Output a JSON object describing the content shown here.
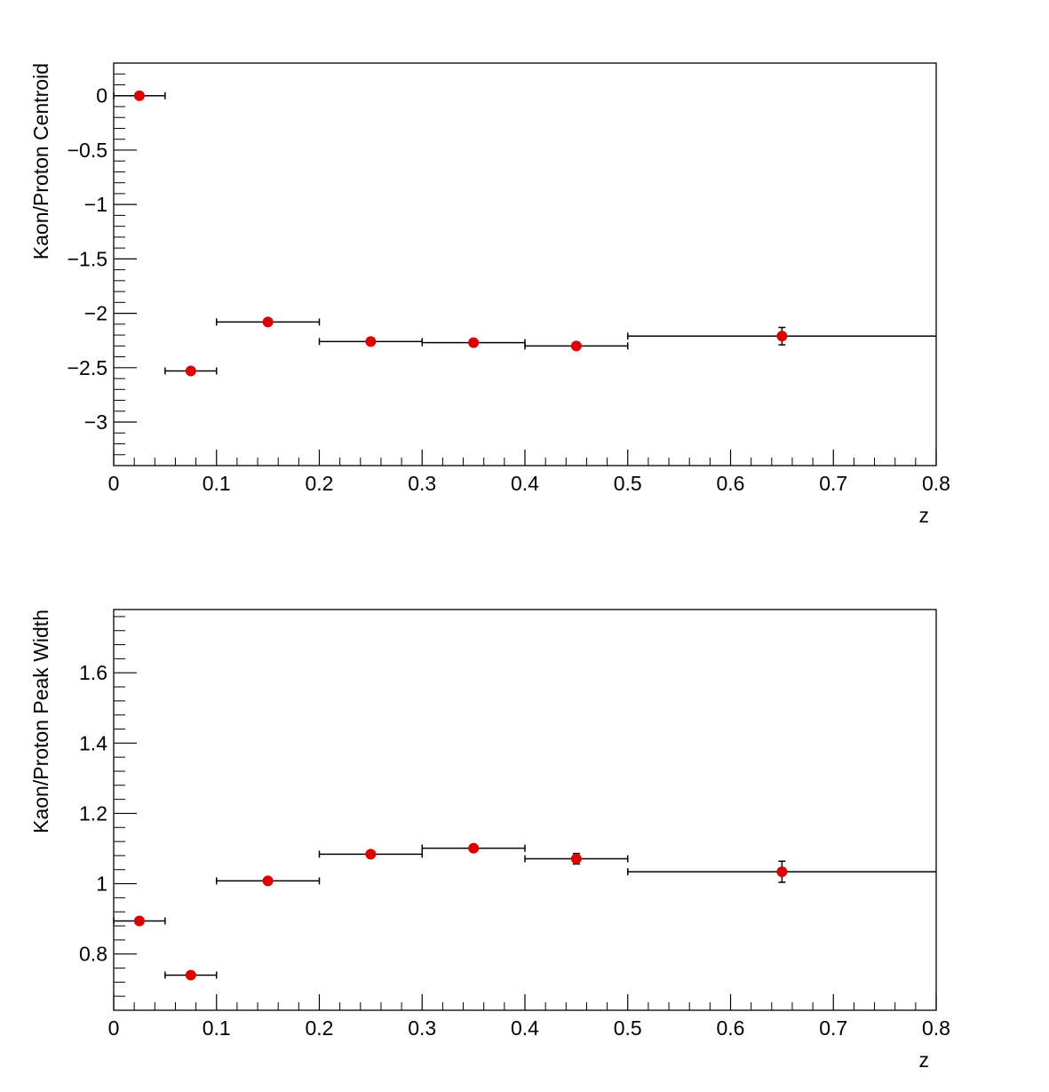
{
  "chart_data": [
    {
      "type": "scatter",
      "xlabel": "z",
      "ylabel": "Kaon/Proton Centroid",
      "xlim": [
        0,
        0.8
      ],
      "ylim": [
        -3.4,
        0.3
      ],
      "grid": false,
      "marker_color": "#dd0000",
      "x_ticks": [
        "0",
        "0.1",
        "0.2",
        "0.3",
        "0.4",
        "0.5",
        "0.6",
        "0.7",
        "0.8"
      ],
      "y_ticks": [
        "0",
        "−0.5",
        "−1",
        "−1.5",
        "−2",
        "−2.5",
        "−3"
      ],
      "points": [
        {
          "x": 0.025,
          "y": 0.0,
          "xerr": 0.025,
          "yerr": 0.0
        },
        {
          "x": 0.075,
          "y": -2.53,
          "xerr": 0.025,
          "yerr": 0.0
        },
        {
          "x": 0.15,
          "y": -2.08,
          "xerr": 0.05,
          "yerr": 0.0
        },
        {
          "x": 0.25,
          "y": -2.26,
          "xerr": 0.05,
          "yerr": 0.0
        },
        {
          "x": 0.35,
          "y": -2.27,
          "xerr": 0.05,
          "yerr": 0.0
        },
        {
          "x": 0.45,
          "y": -2.3,
          "xerr": 0.05,
          "yerr": 0.0
        },
        {
          "x": 0.65,
          "y": -2.21,
          "xerr": 0.15,
          "yerr": 0.08
        }
      ]
    },
    {
      "type": "scatter",
      "xlabel": "z",
      "ylabel": "Kaon/Proton Peak Width",
      "xlim": [
        0,
        0.8
      ],
      "ylim": [
        0.64,
        1.78
      ],
      "grid": false,
      "marker_color": "#dd0000",
      "x_ticks": [
        "0",
        "0.1",
        "0.2",
        "0.3",
        "0.4",
        "0.5",
        "0.6",
        "0.7",
        "0.8"
      ],
      "y_ticks": [
        "0.8",
        "1",
        "1.2",
        "1.4",
        "1.6"
      ],
      "points": [
        {
          "x": 0.025,
          "y": 0.894,
          "xerr": 0.025,
          "yerr": 0.0
        },
        {
          "x": 0.075,
          "y": 0.74,
          "xerr": 0.025,
          "yerr": 0.0
        },
        {
          "x": 0.15,
          "y": 1.008,
          "xerr": 0.05,
          "yerr": 0.0
        },
        {
          "x": 0.25,
          "y": 1.084,
          "xerr": 0.05,
          "yerr": 0.0
        },
        {
          "x": 0.35,
          "y": 1.101,
          "xerr": 0.05,
          "yerr": 0.0
        },
        {
          "x": 0.45,
          "y": 1.071,
          "xerr": 0.05,
          "yerr": 0.015
        },
        {
          "x": 0.65,
          "y": 1.034,
          "xerr": 0.15,
          "yerr": 0.03
        }
      ]
    }
  ]
}
